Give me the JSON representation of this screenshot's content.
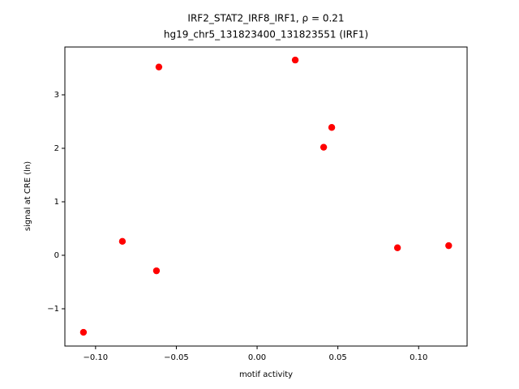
{
  "chart_data": {
    "type": "scatter",
    "title": [
      "IRF2_STAT2_IRF8_IRF1, ρ = 0.21",
      "hg19_chr5_131823400_131823551 (IRF1)"
    ],
    "x_label": "motif activity",
    "y_label": "signal at CRE (ln)",
    "series": [
      {
        "color": "#ff0000",
        "x": [
          -0.1075,
          -0.0834,
          -0.0623,
          -0.0608,
          0.0236,
          0.0412,
          0.0462,
          0.0869,
          0.1186
        ],
        "values": [
          -1.44,
          0.26,
          -0.29,
          3.52,
          3.65,
          2.02,
          2.39,
          0.14,
          0.18
        ]
      }
    ],
    "xlim": [
      -0.119,
      0.13
    ],
    "xticks": [
      {
        "value": -0.1,
        "label": "−0.10"
      },
      {
        "value": -0.05,
        "label": "−0.05"
      },
      {
        "value": 0,
        "label": "0.00"
      },
      {
        "value": 0.05,
        "label": "0.05"
      },
      {
        "value": 0.1,
        "label": "0.10"
      }
    ],
    "ylim": [
      -1.697,
      3.894
    ],
    "yticks": [
      {
        "value": -1,
        "label": "−1"
      },
      0,
      1,
      2,
      3
    ],
    "grid": false
  }
}
